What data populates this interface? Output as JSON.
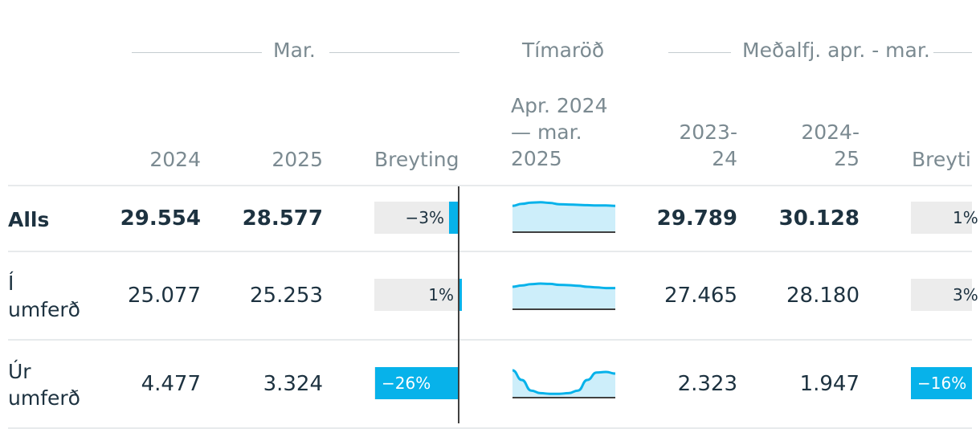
{
  "groups": {
    "month": "Mar.",
    "series": "Tímaröð",
    "average": "Meðalfj. apr. - mar."
  },
  "columns": {
    "y2024": "2024",
    "y2025": "2025",
    "change1": "Breyting",
    "series": [
      "Apr. 2024",
      "— mar.",
      "2025"
    ],
    "p2324": [
      "2023-",
      "24"
    ],
    "p2425": [
      "2024-",
      "25"
    ],
    "change2": "Breyti"
  },
  "chart_data": {
    "type": "table",
    "rows": [
      {
        "label": [
          "Alls"
        ],
        "bold": true,
        "v2024": "29.554",
        "v2025": "28.577",
        "change": -3,
        "change_label": "−3%",
        "avg2324": "29.789",
        "avg2425": "30.128",
        "change2": 1,
        "change2_label": "1%",
        "sparkline": [
          0.82,
          0.88,
          0.92,
          0.93,
          0.91,
          0.87,
          0.86,
          0.85,
          0.84,
          0.83,
          0.83,
          0.82
        ]
      },
      {
        "label": [
          "Í",
          "umferð"
        ],
        "bold": false,
        "v2024": "25.077",
        "v2025": "25.253",
        "change": 1,
        "change_label": "1%",
        "avg2324": "27.465",
        "avg2425": "28.180",
        "change2": 3,
        "change2_label": "3%",
        "sparkline": [
          0.7,
          0.74,
          0.78,
          0.8,
          0.79,
          0.76,
          0.75,
          0.73,
          0.7,
          0.68,
          0.66,
          0.66
        ]
      },
      {
        "label": [
          "Úr",
          "umferð"
        ],
        "bold": false,
        "v2024": "4.477",
        "v2025": "3.324",
        "change": -26,
        "change_label": "−26%",
        "avg2324": "2.323",
        "avg2425": "1.947",
        "change2": -16,
        "change2_label": "−16%",
        "sparkline": [
          0.85,
          0.55,
          0.22,
          0.14,
          0.12,
          0.12,
          0.14,
          0.22,
          0.55,
          0.78,
          0.8,
          0.75
        ]
      }
    ]
  },
  "colors": {
    "accent": "#07b2ea",
    "spark_fill": "#cdeefa",
    "bar_bg": "#ececec",
    "text": "#1d3240",
    "muted": "#7b8a91"
  }
}
